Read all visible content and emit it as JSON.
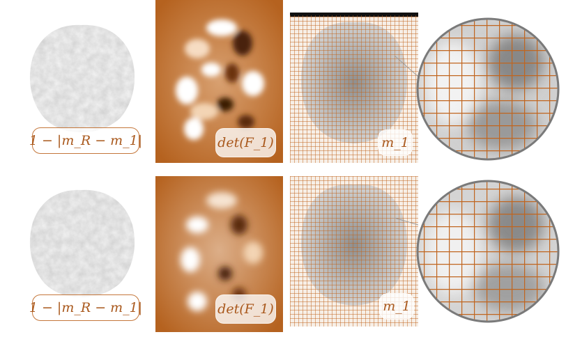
{
  "colors": {
    "accent": "#b3601e",
    "label_text": "#a9581c",
    "grid_line": "#c0651f"
  },
  "rows": [
    {
      "diff_label": "1 − |m_R − m_1|",
      "det_label": "det(F_1)",
      "mesh_label": "m_1"
    },
    {
      "diff_label": "1 − |m_R − m_1|",
      "det_label": "det(F_1)",
      "mesh_label": "m_1"
    }
  ]
}
